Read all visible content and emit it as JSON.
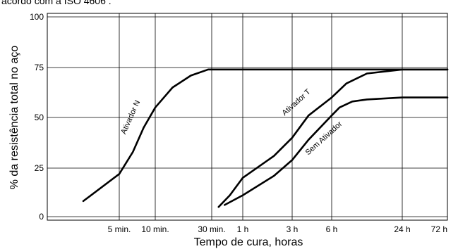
{
  "caption": "acordo com a ISO 4606 .",
  "chart_data": {
    "type": "line",
    "xlabel": "Tempo de cura, horas",
    "ylabel": "% da resistência total no aço",
    "x_tick_labels": [
      "5 min.",
      "10 min.",
      "30 min.",
      "1 h",
      "3 h",
      "6 h",
      "24 h",
      "72 h"
    ],
    "y_tick_labels": [
      "0",
      "25",
      "50",
      "75",
      "100"
    ],
    "ylim": [
      0,
      100
    ],
    "grid": true,
    "series": [
      {
        "name": "Ativador N",
        "x": [
          "2.5 min.",
          "5 min.",
          "6.5 min.",
          "8 min.",
          "10 min.",
          "14 min.",
          "20 min.",
          "28 min.",
          "1 h",
          "72 h"
        ],
        "y": [
          8,
          22,
          33,
          45,
          55,
          65,
          71,
          74,
          74,
          74
        ]
      },
      {
        "name": "Ativador T",
        "x": [
          "35 min.",
          "45 min.",
          "1 h",
          "2 h",
          "3 h",
          "4 h",
          "6 h",
          "8 h",
          "12 h",
          "24 h",
          "72 h"
        ],
        "y": [
          5,
          11,
          20,
          31,
          40,
          51,
          60,
          67,
          72,
          74,
          74
        ]
      },
      {
        "name": "Sem Ativador",
        "x": [
          "40 min.",
          "1 h",
          "2 h",
          "3 h",
          "4 h",
          "6 h",
          "7 h",
          "9 h",
          "12 h",
          "24 h",
          "72 h"
        ],
        "y": [
          6,
          11,
          21,
          29,
          39,
          51,
          55,
          58,
          59,
          60,
          60
        ]
      }
    ]
  }
}
